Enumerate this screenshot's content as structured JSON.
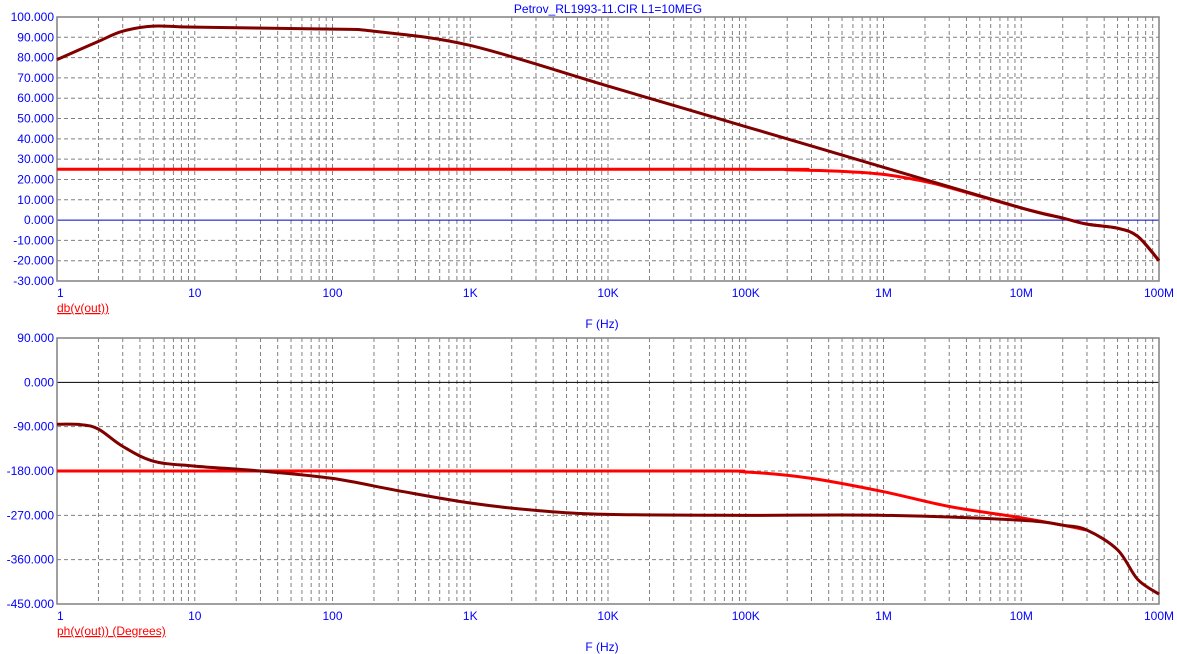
{
  "chart_data": [
    {
      "type": "line",
      "title": "Petrov_RL1993-11.CIR L1=10MEG",
      "xlabel": "F (Hz)",
      "ylabel": "",
      "legend": "db(v(out))",
      "legend_placement": "bottom-left",
      "xscale": "log",
      "xlim": [
        1,
        100000000
      ],
      "ylim": [
        -30,
        100
      ],
      "grid": true,
      "x_tick_labels": [
        "1",
        "10",
        "100",
        "1K",
        "10K",
        "100K",
        "1M",
        "10M",
        "100M"
      ],
      "y_ticks": [
        100,
        90,
        80,
        70,
        60,
        50,
        40,
        30,
        20,
        10,
        0,
        -10,
        -20,
        -30
      ],
      "y_tick_labels": [
        "100.000",
        "90.000",
        "80.000",
        "70.000",
        "60.000",
        "50.000",
        "40.000",
        "30.000",
        "20.000",
        "10.000",
        "0.000",
        "-10.000",
        "-20.000",
        "-30.000"
      ],
      "series": [
        {
          "color": "#800000",
          "x": [
            1,
            2,
            3,
            5,
            10,
            100,
            200,
            1000,
            10000,
            100000,
            1000000,
            10000000,
            20000000,
            30000000,
            50000000,
            70000000,
            100000000
          ],
          "y": [
            79,
            88,
            93,
            95.5,
            95,
            94,
            93,
            86,
            66,
            46,
            26,
            6,
            1,
            -2,
            -4,
            -8,
            -20
          ]
        },
        {
          "color": "#ff0000",
          "x": [
            1,
            100000,
            200000,
            500000,
            1000000,
            2000000,
            3000000,
            10000000,
            20000000,
            30000000,
            50000000,
            70000000,
            100000000
          ],
          "y": [
            25,
            25,
            24.8,
            24,
            22.5,
            19,
            16,
            6,
            1,
            -2,
            -4,
            -8,
            -20
          ]
        }
      ]
    },
    {
      "type": "line",
      "xlabel": "F (Hz)",
      "ylabel": "",
      "legend": "ph(v(out)) (Degrees)",
      "legend_placement": "bottom-left",
      "xscale": "log",
      "xlim": [
        1,
        100000000
      ],
      "ylim": [
        -450,
        90
      ],
      "grid": true,
      "x_tick_labels": [
        "1",
        "10",
        "100",
        "1K",
        "10K",
        "100K",
        "1M",
        "10M",
        "100M"
      ],
      "y_ticks": [
        90,
        0,
        -90,
        -180,
        -270,
        -360,
        -450
      ],
      "y_tick_labels": [
        "90.000",
        "0.000",
        "-90.000",
        "-180.000",
        "-270.000",
        "-360.000",
        "-450.000"
      ],
      "series": [
        {
          "color": "#800000",
          "x": [
            1,
            1.5,
            2,
            3,
            5,
            10,
            30,
            100,
            300,
            1000,
            3000,
            10000,
            100000,
            1000000,
            10000000,
            20000000,
            30000000,
            50000000,
            70000000,
            100000000
          ],
          "y": [
            -85,
            -86,
            -95,
            -130,
            -160,
            -170,
            -180,
            -195,
            -220,
            -245,
            -260,
            -268,
            -270,
            -270,
            -280,
            -290,
            -300,
            -340,
            -400,
            -430
          ]
        },
        {
          "color": "#ff0000",
          "x": [
            1,
            30000,
            100000,
            300000,
            1000000,
            3000000,
            10000000,
            20000000,
            30000000
          ],
          "y": [
            -180,
            -180,
            -182,
            -195,
            -222,
            -252,
            -275,
            -290,
            -300
          ]
        }
      ]
    }
  ]
}
